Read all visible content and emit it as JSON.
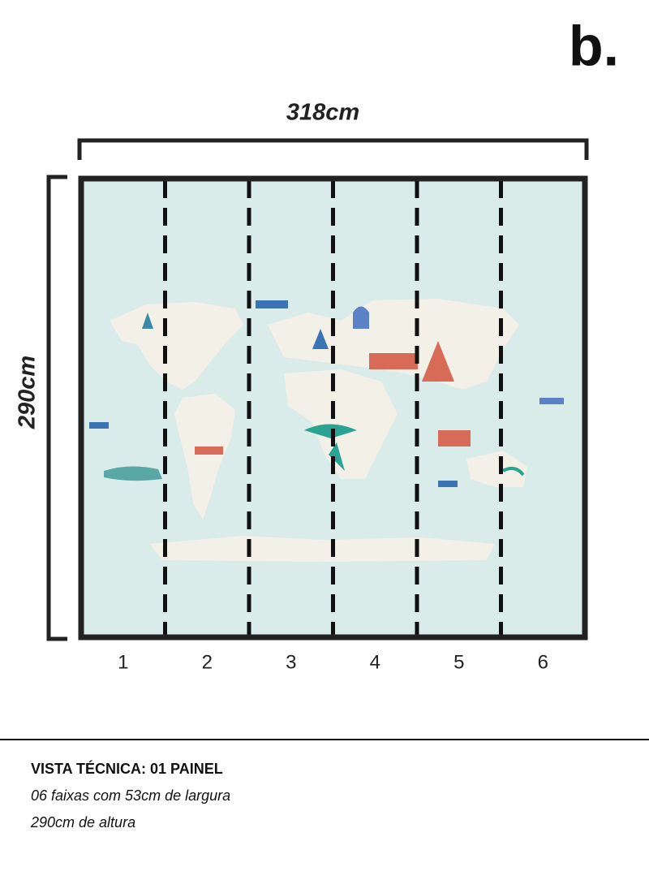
{
  "logo": "b.",
  "dimensions": {
    "width": "318cm",
    "height": "290cm"
  },
  "panels": [
    "1",
    "2",
    "3",
    "4",
    "5",
    "6"
  ],
  "footer": {
    "title": "VISTA TÉCNICA: 01 PAINEL",
    "lines": [
      "06 faixas com 53cm de largura",
      "290cm de altura"
    ]
  }
}
